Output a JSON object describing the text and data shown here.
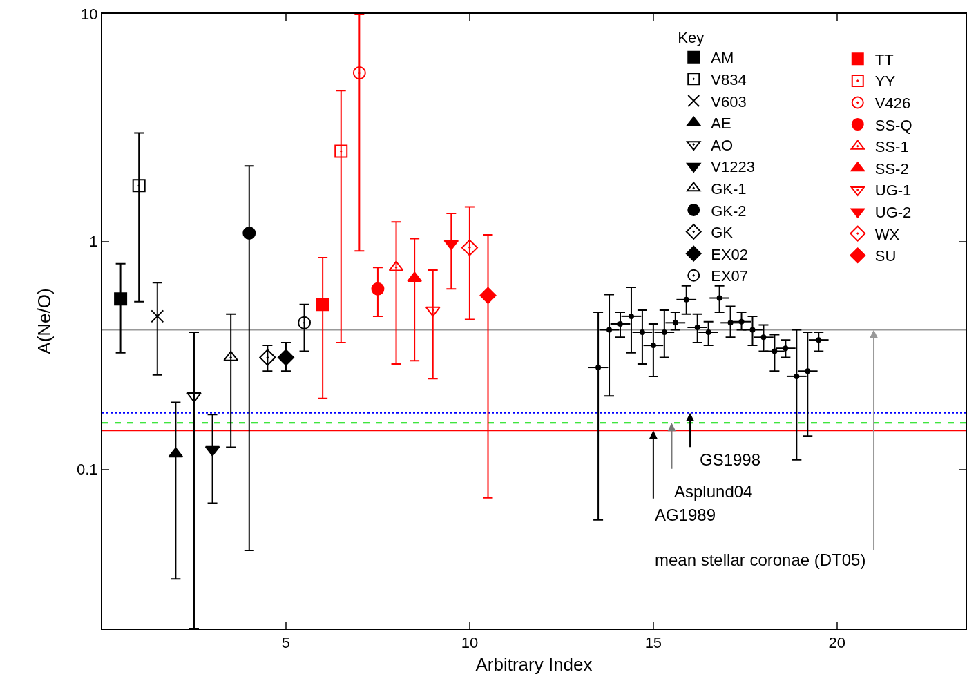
{
  "chart_data": {
    "type": "scatter",
    "xlabel": "Arbitrary Index",
    "ylabel": "A(Ne/O)",
    "legend_title": "Key",
    "legend": "top right",
    "log": true,
    "xlim": [
      0,
      23.5
    ],
    "xticks": [
      5,
      10,
      15,
      20
    ],
    "ylim": [
      0.02,
      10
    ],
    "yticks": [
      0.1,
      1,
      10
    ],
    "series": [
      {
        "name": "AM",
        "color": "#000000",
        "marker": "square",
        "x": [
          0.5
        ],
        "values": [
          0.56
        ],
        "errors": [
          [
            0.325,
            0.8
          ]
        ]
      },
      {
        "name": "V834",
        "color": "#000000",
        "marker": "square-open",
        "x": [
          1
        ],
        "values": [
          1.76
        ],
        "errors": [
          [
            0.545,
            3.0
          ]
        ]
      },
      {
        "name": "V603",
        "color": "#000000",
        "marker": "cross",
        "x": [
          1.5
        ],
        "values": [
          0.47
        ],
        "errors": [
          [
            0.26,
            0.66
          ]
        ]
      },
      {
        "name": "AE",
        "color": "#000000",
        "marker": "triangle",
        "x": [
          2
        ],
        "values": [
          0.117
        ],
        "errors": [
          [
            0.033,
            0.197
          ]
        ]
      },
      {
        "name": "AO",
        "color": "#000000",
        "marker": "triangle-down-open",
        "x": [
          2.5
        ],
        "values": [
          0.21
        ],
        "errors": [
          [
            0.02,
            0.4
          ]
        ]
      },
      {
        "name": "V1223",
        "color": "#000000",
        "marker": "triangle-down",
        "x": [
          3
        ],
        "values": [
          0.122
        ],
        "errors": [
          [
            0.071,
            0.174
          ]
        ]
      },
      {
        "name": "GK-1",
        "color": "#000000",
        "marker": "triangle-open",
        "x": [
          3.5
        ],
        "values": [
          0.31
        ],
        "errors": [
          [
            0.125,
            0.48
          ]
        ]
      },
      {
        "name": "GK-2",
        "color": "#000000",
        "marker": "circle",
        "x": [
          4
        ],
        "values": [
          1.09
        ],
        "errors": [
          [
            0.044,
            2.15
          ]
        ]
      },
      {
        "name": "GK",
        "color": "#000000",
        "marker": "diamond-open",
        "x": [
          4.5
        ],
        "values": [
          0.31
        ],
        "errors": [
          [
            0.27,
            0.35
          ]
        ]
      },
      {
        "name": "EX02",
        "color": "#000000",
        "marker": "diamond",
        "x": [
          5
        ],
        "values": [
          0.31
        ],
        "errors": [
          [
            0.27,
            0.36
          ]
        ]
      },
      {
        "name": "EX07",
        "color": "#000000",
        "marker": "circle-open",
        "x": [
          5.5
        ],
        "values": [
          0.44
        ],
        "errors": [
          [
            0.33,
            0.53
          ]
        ]
      },
      {
        "name": "TT",
        "color": "#ff0000",
        "marker": "square",
        "x": [
          6
        ],
        "values": [
          0.53
        ],
        "errors": [
          [
            0.205,
            0.85
          ]
        ]
      },
      {
        "name": "YY",
        "color": "#ff0000",
        "marker": "square-open",
        "x": [
          6.5
        ],
        "values": [
          2.49
        ],
        "errors": [
          [
            0.36,
            4.6
          ]
        ]
      },
      {
        "name": "V426",
        "color": "#ff0000",
        "marker": "circle-open",
        "x": [
          7
        ],
        "values": [
          5.5
        ],
        "errors": [
          [
            0.91,
            10
          ]
        ]
      },
      {
        "name": "SS-Q",
        "color": "#ff0000",
        "marker": "circle",
        "x": [
          7.5
        ],
        "values": [
          0.62
        ],
        "errors": [
          [
            0.47,
            0.77
          ]
        ]
      },
      {
        "name": "SS-1",
        "color": "#ff0000",
        "marker": "triangle-open",
        "x": [
          8
        ],
        "values": [
          0.77
        ],
        "errors": [
          [
            0.29,
            1.22
          ]
        ]
      },
      {
        "name": "SS-2",
        "color": "#ff0000",
        "marker": "triangle",
        "x": [
          8.5
        ],
        "values": [
          0.69
        ],
        "errors": [
          [
            0.3,
            1.03
          ]
        ]
      },
      {
        "name": "UG-1",
        "color": "#ff0000",
        "marker": "triangle-down-open",
        "x": [
          9
        ],
        "values": [
          0.5
        ],
        "errors": [
          [
            0.25,
            0.75
          ]
        ]
      },
      {
        "name": "UG-2",
        "color": "#ff0000",
        "marker": "triangle-down",
        "x": [
          9.5
        ],
        "values": [
          0.98
        ],
        "errors": [
          [
            0.62,
            1.33
          ]
        ]
      },
      {
        "name": "WX",
        "color": "#ff0000",
        "marker": "diamond-open",
        "x": [
          10
        ],
        "values": [
          0.94
        ],
        "errors": [
          [
            0.455,
            1.42
          ]
        ]
      },
      {
        "name": "SU",
        "color": "#ff0000",
        "marker": "diamond",
        "x": [
          10.5
        ],
        "values": [
          0.58
        ],
        "errors": [
          [
            0.075,
            1.07
          ]
        ]
      },
      {
        "color": "#000000",
        "marker": "none",
        "x": [
          13.5,
          13.8,
          14.1,
          14.4,
          14.7,
          15.0,
          15.3,
          15.6,
          15.9,
          16.2,
          16.5,
          16.8,
          17.1,
          17.4,
          17.7,
          18.0,
          18.3,
          18.6,
          18.9,
          19.2,
          19.5
        ],
        "values": [
          0.28,
          0.41,
          0.435,
          0.47,
          0.4,
          0.35,
          0.4,
          0.44,
          0.556,
          0.42,
          0.4,
          0.565,
          0.44,
          0.445,
          0.41,
          0.38,
          0.33,
          0.34,
          0.256,
          0.27,
          0.37
        ],
        "errors": [
          [
            0.06,
            0.49
          ],
          [
            0.21,
            0.585
          ],
          [
            0.38,
            0.49
          ],
          [
            0.325,
            0.63
          ],
          [
            0.29,
            0.5
          ],
          [
            0.256,
            0.435
          ],
          [
            0.31,
            0.5
          ],
          [
            0.41,
            0.49
          ],
          [
            0.48,
            0.64
          ],
          [
            0.36,
            0.48
          ],
          [
            0.35,
            0.445
          ],
          [
            0.49,
            0.64
          ],
          [
            0.38,
            0.52
          ],
          [
            0.41,
            0.49
          ],
          [
            0.35,
            0.47
          ],
          [
            0.33,
            0.43
          ],
          [
            0.27,
            0.39
          ],
          [
            0.31,
            0.37
          ],
          [
            0.11,
            0.41
          ],
          [
            0.14,
            0.4
          ],
          [
            0.33,
            0.4
          ]
        ],
        "xerrors": [
          0.27,
          0.27,
          0.27,
          0.27,
          0.27,
          0.27,
          0.27,
          0.27,
          0.27,
          0.27,
          0.27,
          0.27,
          0.27,
          0.27,
          0.27,
          0.27,
          0.27,
          0.27,
          0.27,
          0.27,
          0.27
        ]
      }
    ],
    "ref_lines": [
      {
        "axis": "y",
        "value": 0.41,
        "color": "#999999",
        "line_style": "solid"
      },
      {
        "axis": "y",
        "value": 0.177,
        "color": "#0000ff",
        "line_style": "dotted"
      },
      {
        "axis": "y",
        "value": 0.16,
        "color": "#00dd00",
        "line_style": "dashed"
      },
      {
        "axis": "y",
        "value": 0.148,
        "color": "#ff0000",
        "line_style": "solid"
      }
    ],
    "annotations": [
      {
        "text": "GS1998",
        "x": 16,
        "y": 0.177
      },
      {
        "text": "Asplund04",
        "x": 15.5,
        "y": 0.16
      },
      {
        "text": "AG1989",
        "x": 15,
        "y": 0.148
      },
      {
        "text": "mean stellar coronae (DT05)",
        "x": 21,
        "y": 0.41
      }
    ]
  }
}
